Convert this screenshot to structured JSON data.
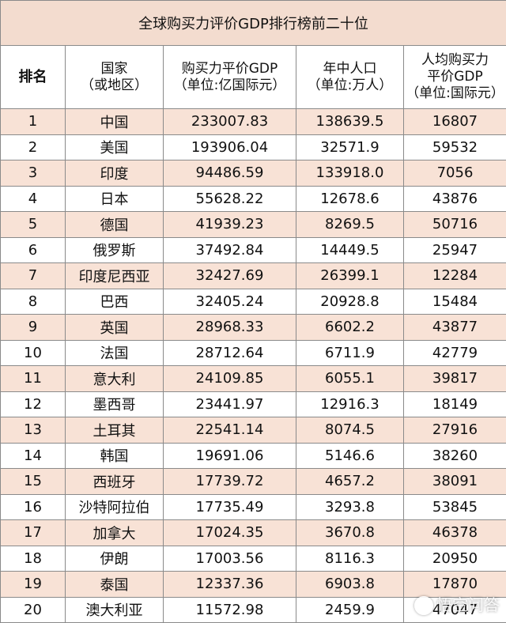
{
  "title": "全球购买力评价GDP排行榜前二十位",
  "headers": {
    "rank": "排名",
    "country_l1": "国家",
    "country_l2": "（或地区）",
    "gdp_l1": "购买力平价GDP",
    "gdp_l2": "（单位:亿国际元）",
    "pop_l1": "年中人口",
    "pop_l2": "（单位:万人）",
    "pc_l1": "人均购买力",
    "pc_l2": "平价GDP",
    "pc_l3": "（单位:国际元）"
  },
  "rows": [
    {
      "rank": "1",
      "country": "中国",
      "gdp": "233007.83",
      "pop": "138639.5",
      "pc": "16807"
    },
    {
      "rank": "2",
      "country": "美国",
      "gdp": "193906.04",
      "pop": "32571.9",
      "pc": "59532"
    },
    {
      "rank": "3",
      "country": "印度",
      "gdp": "94486.59",
      "pop": "133918.0",
      "pc": "7056"
    },
    {
      "rank": "4",
      "country": "日本",
      "gdp": "55628.22",
      "pop": "12678.6",
      "pc": "43876"
    },
    {
      "rank": "5",
      "country": "德国",
      "gdp": "41939.23",
      "pop": "8269.5",
      "pc": "50716"
    },
    {
      "rank": "6",
      "country": "俄罗斯",
      "gdp": "37492.84",
      "pop": "14449.5",
      "pc": "25947"
    },
    {
      "rank": "7",
      "country": "印度尼西亚",
      "gdp": "32427.69",
      "pop": "26399.1",
      "pc": "12284"
    },
    {
      "rank": "8",
      "country": "巴西",
      "gdp": "32405.24",
      "pop": "20928.8",
      "pc": "15484"
    },
    {
      "rank": "9",
      "country": "英国",
      "gdp": "28968.33",
      "pop": "6602.2",
      "pc": "43877"
    },
    {
      "rank": "10",
      "country": "法国",
      "gdp": "28712.64",
      "pop": "6711.9",
      "pc": "42779"
    },
    {
      "rank": "11",
      "country": "意大利",
      "gdp": "24109.85",
      "pop": "6055.1",
      "pc": "39817"
    },
    {
      "rank": "12",
      "country": "墨西哥",
      "gdp": "23441.97",
      "pop": "12916.3",
      "pc": "18149"
    },
    {
      "rank": "13",
      "country": "土耳其",
      "gdp": "22541.14",
      "pop": "8074.5",
      "pc": "27916"
    },
    {
      "rank": "14",
      "country": "韩国",
      "gdp": "19691.06",
      "pop": "5146.6",
      "pc": "38260"
    },
    {
      "rank": "15",
      "country": "西班牙",
      "gdp": "17739.72",
      "pop": "4657.2",
      "pc": "38091"
    },
    {
      "rank": "16",
      "country": "沙特阿拉伯",
      "gdp": "17735.49",
      "pop": "3293.8",
      "pc": "53845"
    },
    {
      "rank": "17",
      "country": "加拿大",
      "gdp": "17024.35",
      "pop": "3670.8",
      "pc": "46378"
    },
    {
      "rank": "18",
      "country": "伊朗",
      "gdp": "17003.56",
      "pop": "8116.3",
      "pc": "20950"
    },
    {
      "rank": "19",
      "country": "泰国",
      "gdp": "12337.36",
      "pop": "6903.8",
      "pc": "17870"
    },
    {
      "rank": "20",
      "country": "澳大利亚",
      "gdp": "11572.98",
      "pop": "2459.9",
      "pc": "47047"
    }
  ],
  "watermark": "悟空问答"
}
